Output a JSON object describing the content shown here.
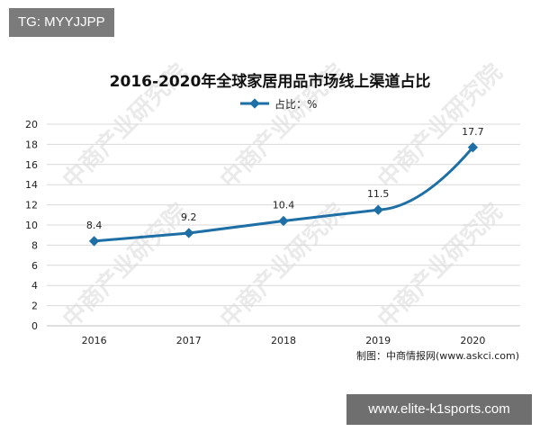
{
  "badges": {
    "top_left": "TG: MYYJJPP",
    "bottom_right": "www.elite-k1sports.com"
  },
  "watermark_text": "中商产业研究院",
  "source_note": "制图：中商情报网(www.askci.com)",
  "colors": {
    "line": "#1d6fa5",
    "grid": "#d9d9d9",
    "axis_text": "#222222"
  },
  "chart_data": {
    "type": "line",
    "title": "2016-2020年全球家居用品市场线上渠道占比",
    "legend": {
      "position": "top-center"
    },
    "categories": [
      "2016",
      "2017",
      "2018",
      "2019",
      "2020"
    ],
    "series": [
      {
        "name": "占比：%",
        "values": [
          8.4,
          9.2,
          10.4,
          11.5,
          17.7
        ],
        "labels": [
          "8.4",
          "9.2",
          "10.4",
          "11.5",
          "17.7"
        ]
      }
    ],
    "ylim": [
      0,
      20
    ],
    "yticks": [
      "0",
      "2",
      "4",
      "6",
      "8",
      "10",
      "12",
      "14",
      "16",
      "18",
      "20"
    ],
    "grid": true,
    "xlabel": "",
    "ylabel": ""
  }
}
